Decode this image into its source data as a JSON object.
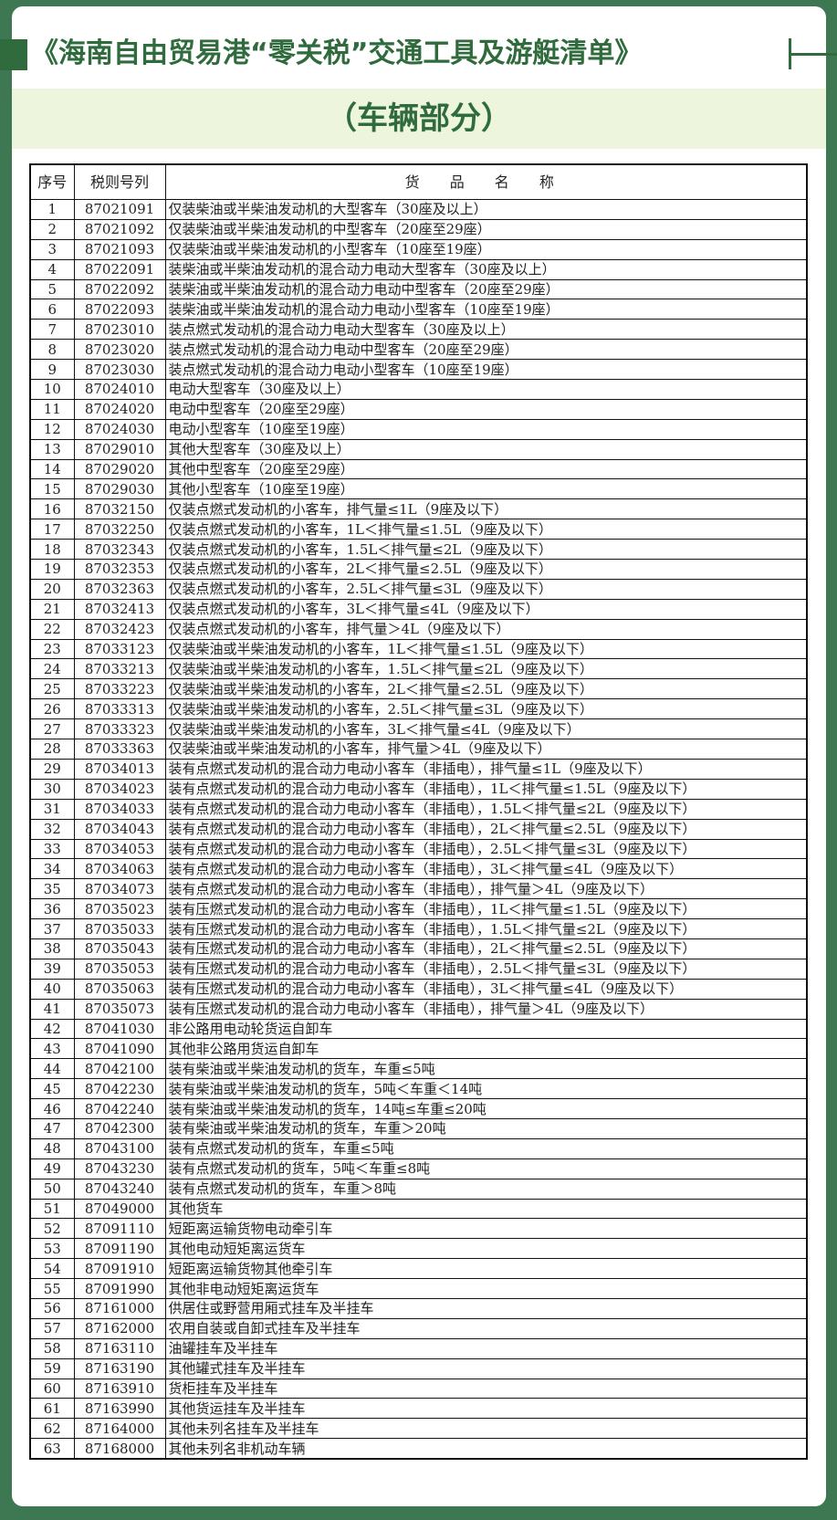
{
  "title": "《海南自由贸易港“零关税”交通工具及游艇清单》",
  "subtitle": "（车辆部分）",
  "colors": {
    "background": "#3d7853",
    "accent": "#2f6b3c",
    "band": "#eef5dd"
  },
  "table": {
    "headers": [
      "序号",
      "税则号列",
      "货 品 名 称"
    ],
    "rows": [
      [
        "1",
        "87021091",
        "仅装柴油或半柴油发动机的大型客车（30座及以上）"
      ],
      [
        "2",
        "87021092",
        "仅装柴油或半柴油发动机的中型客车（20座至29座）"
      ],
      [
        "3",
        "87021093",
        "仅装柴油或半柴油发动机的小型客车（10座至19座）"
      ],
      [
        "4",
        "87022091",
        "装柴油或半柴油发动机的混合动力电动大型客车（30座及以上）"
      ],
      [
        "5",
        "87022092",
        "装柴油或半柴油发动机的混合动力电动中型客车（20座至29座）"
      ],
      [
        "6",
        "87022093",
        "装柴油或半柴油发动机的混合动力电动小型客车（10座至19座）"
      ],
      [
        "7",
        "87023010",
        "装点燃式发动机的混合动力电动大型客车（30座及以上）"
      ],
      [
        "8",
        "87023020",
        "装点燃式发动机的混合动力电动中型客车（20座至29座）"
      ],
      [
        "9",
        "87023030",
        "装点燃式发动机的混合动力电动小型客车（10座至19座）"
      ],
      [
        "10",
        "87024010",
        "电动大型客车（30座及以上）"
      ],
      [
        "11",
        "87024020",
        "电动中型客车（20座至29座）"
      ],
      [
        "12",
        "87024030",
        "电动小型客车（10座至19座）"
      ],
      [
        "13",
        "87029010",
        "其他大型客车（30座及以上）"
      ],
      [
        "14",
        "87029020",
        "其他中型客车（20座至29座）"
      ],
      [
        "15",
        "87029030",
        "其他小型客车（10座至19座）"
      ],
      [
        "16",
        "87032150",
        "仅装点燃式发动机的小客车，排气量≤1L（9座及以下）"
      ],
      [
        "17",
        "87032250",
        "仅装点燃式发动机的小客车，1L＜排气量≤1.5L（9座及以下）"
      ],
      [
        "18",
        "87032343",
        "仅装点燃式发动机的小客车，1.5L＜排气量≤2L（9座及以下）"
      ],
      [
        "19",
        "87032353",
        "仅装点燃式发动机的小客车，2L＜排气量≤2.5L（9座及以下）"
      ],
      [
        "20",
        "87032363",
        "仅装点燃式发动机的小客车，2.5L＜排气量≤3L（9座及以下）"
      ],
      [
        "21",
        "87032413",
        "仅装点燃式发动机的小客车，3L＜排气量≤4L（9座及以下）"
      ],
      [
        "22",
        "87032423",
        "仅装点燃式发动机的小客车，排气量＞4L（9座及以下）"
      ],
      [
        "23",
        "87033123",
        "仅装柴油或半柴油发动机的小客车，1L＜排气量≤1.5L（9座及以下）"
      ],
      [
        "24",
        "87033213",
        "仅装柴油或半柴油发动机的小客车，1.5L＜排气量≤2L（9座及以下）"
      ],
      [
        "25",
        "87033223",
        "仅装柴油或半柴油发动机的小客车，2L＜排气量≤2.5L（9座及以下）"
      ],
      [
        "26",
        "87033313",
        "仅装柴油或半柴油发动机的小客车，2.5L＜排气量≤3L（9座及以下）"
      ],
      [
        "27",
        "87033323",
        "仅装柴油或半柴油发动机的小客车，3L＜排气量≤4L（9座及以下）"
      ],
      [
        "28",
        "87033363",
        "仅装柴油或半柴油发动机的小客车，排气量＞4L（9座及以下）"
      ],
      [
        "29",
        "87034013",
        "装有点燃式发动机的混合动力电动小客车（非插电），排气量≤1L（9座及以下）"
      ],
      [
        "30",
        "87034023",
        "装有点燃式发动机的混合动力电动小客车（非插电），1L＜排气量≤1.5L（9座及以下）"
      ],
      [
        "31",
        "87034033",
        "装有点燃式发动机的混合动力电动小客车（非插电），1.5L＜排气量≤2L（9座及以下）"
      ],
      [
        "32",
        "87034043",
        "装有点燃式发动机的混合动力电动小客车（非插电），2L＜排气量≤2.5L（9座及以下）"
      ],
      [
        "33",
        "87034053",
        "装有点燃式发动机的混合动力电动小客车（非插电），2.5L＜排气量≤3L（9座及以下）"
      ],
      [
        "34",
        "87034063",
        "装有点燃式发动机的混合动力电动小客车（非插电），3L＜排气量≤4L（9座及以下）"
      ],
      [
        "35",
        "87034073",
        "装有点燃式发动机的混合动力电动小客车（非插电），排气量＞4L（9座及以下）"
      ],
      [
        "36",
        "87035023",
        "装有压燃式发动机的混合动力电动小客车（非插电），1L＜排气量≤1.5L（9座及以下）"
      ],
      [
        "37",
        "87035033",
        "装有压燃式发动机的混合动力电动小客车（非插电），1.5L＜排气量≤2L（9座及以下）"
      ],
      [
        "38",
        "87035043",
        "装有压燃式发动机的混合动力电动小客车（非插电），2L＜排气量≤2.5L（9座及以下）"
      ],
      [
        "39",
        "87035053",
        "装有压燃式发动机的混合动力电动小客车（非插电），2.5L＜排气量≤3L（9座及以下）"
      ],
      [
        "40",
        "87035063",
        "装有压燃式发动机的混合动力电动小客车（非插电），3L＜排气量≤4L（9座及以下）"
      ],
      [
        "41",
        "87035073",
        "装有压燃式发动机的混合动力电动小客车（非插电），排气量＞4L（9座及以下）"
      ],
      [
        "42",
        "87041030",
        "非公路用电动轮货运自卸车"
      ],
      [
        "43",
        "87041090",
        "其他非公路用货运自卸车"
      ],
      [
        "44",
        "87042100",
        "装有柴油或半柴油发动机的货车，车重≤5吨"
      ],
      [
        "45",
        "87042230",
        "装有柴油或半柴油发动机的货车，5吨＜车重＜14吨"
      ],
      [
        "46",
        "87042240",
        "装有柴油或半柴油发动机的货车，14吨≤车重≤20吨"
      ],
      [
        "47",
        "87042300",
        "装有柴油或半柴油发动机的货车，车重＞20吨"
      ],
      [
        "48",
        "87043100",
        "装有点燃式发动机的货车，车重≤5吨"
      ],
      [
        "49",
        "87043230",
        "装有点燃式发动机的货车，5吨＜车重≤8吨"
      ],
      [
        "50",
        "87043240",
        "装有点燃式发动机的货车，车重＞8吨"
      ],
      [
        "51",
        "87049000",
        "其他货车"
      ],
      [
        "52",
        "87091110",
        "短距离运输货物电动牵引车"
      ],
      [
        "53",
        "87091190",
        "其他电动短矩离运货车"
      ],
      [
        "54",
        "87091910",
        "短距离运输货物其他牵引车"
      ],
      [
        "55",
        "87091990",
        "其他非电动短矩离运货车"
      ],
      [
        "56",
        "87161000",
        "供居住或野营用厢式挂车及半挂车"
      ],
      [
        "57",
        "87162000",
        "农用自装或自卸式挂车及半挂车"
      ],
      [
        "58",
        "87163110",
        "油罐挂车及半挂车"
      ],
      [
        "59",
        "87163190",
        "其他罐式挂车及半挂车"
      ],
      [
        "60",
        "87163910",
        "货柜挂车及半挂车"
      ],
      [
        "61",
        "87163990",
        "其他货运挂车及半挂车"
      ],
      [
        "62",
        "87164000",
        "其他未列名挂车及半挂车"
      ],
      [
        "63",
        "87168000",
        "其他未列名非机动车辆"
      ]
    ]
  }
}
